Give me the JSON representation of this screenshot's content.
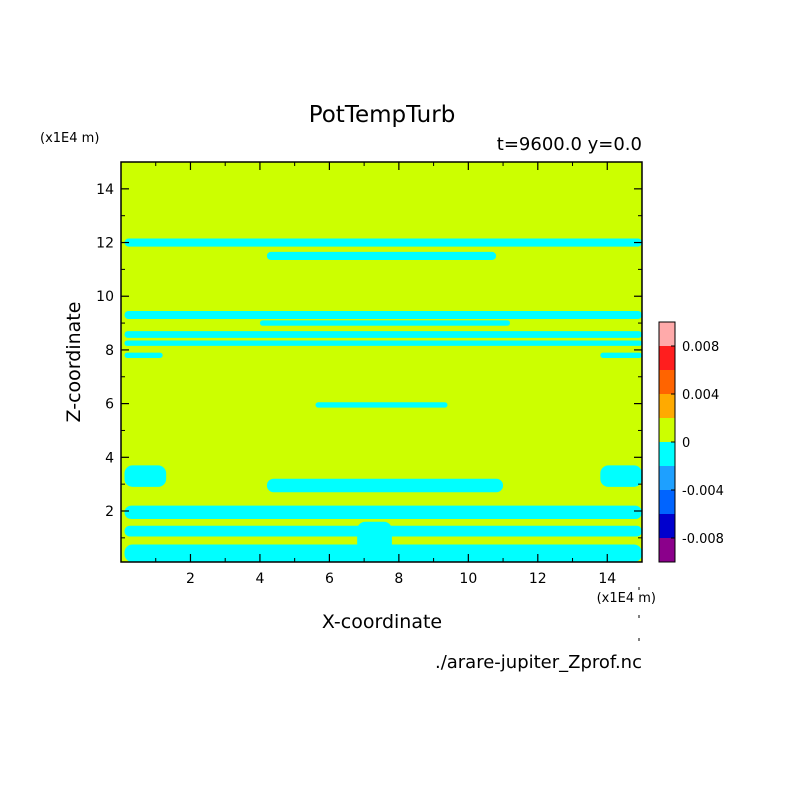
{
  "chart_data": {
    "type": "heatmap",
    "title": "PotTempTurb",
    "subtitle": "t=9600.0 y=0.0",
    "xlabel": "X-coordinate",
    "ylabel": "Z-coordinate",
    "x_unit": "(x1E4 m)",
    "y_unit": "(x1E4 m)",
    "source_file": "./arare-jupiter_Zprof.nc",
    "xlim": [
      0,
      15
    ],
    "ylim": [
      0.1,
      15
    ],
    "x_ticks": [
      2,
      4,
      6,
      8,
      10,
      12,
      14
    ],
    "y_ticks": [
      2,
      4,
      6,
      8,
      10,
      12,
      14
    ],
    "colorbar": {
      "levels": [
        -0.01,
        -0.008,
        -0.006,
        -0.004,
        -0.002,
        0,
        0.002,
        0.004,
        0.006,
        0.008,
        0.01
      ],
      "colors": [
        "#8b008b",
        "#0000cd",
        "#0064ff",
        "#1ea0ff",
        "#00ffff",
        "#ccff00",
        "#ffaa00",
        "#ff6400",
        "#ff1e1e",
        "#ffaaaa"
      ],
      "tick_values": [
        0.008,
        0.004,
        0,
        -0.004,
        -0.008
      ],
      "tick_labels": [
        "0.008",
        "0.004",
        "0",
        "-0.004",
        "-0.008"
      ]
    },
    "background_color": "#ccff00",
    "band_color": "#00ffff",
    "cyan_regions": [
      {
        "x": [
          0.1,
          15
        ],
        "z": [
          11.85,
          12.15
        ]
      },
      {
        "x": [
          4.2,
          10.8
        ],
        "z": [
          11.35,
          11.65
        ]
      },
      {
        "x": [
          0.1,
          15
        ],
        "z": [
          9.15,
          9.45
        ]
      },
      {
        "x": [
          4.0,
          11.2
        ],
        "z": [
          8.9,
          9.1
        ]
      },
      {
        "x": [
          0.1,
          15
        ],
        "z": [
          8.45,
          8.7
        ]
      },
      {
        "x": [
          0.1,
          15
        ],
        "z": [
          8.15,
          8.35
        ]
      },
      {
        "x": [
          0.1,
          1.2
        ],
        "z": [
          7.7,
          7.9
        ]
      },
      {
        "x": [
          13.8,
          15
        ],
        "z": [
          7.7,
          7.9
        ]
      },
      {
        "x": [
          5.6,
          9.4
        ],
        "z": [
          5.85,
          6.05
        ]
      },
      {
        "x": [
          0.1,
          1.3
        ],
        "z": [
          2.9,
          3.7
        ]
      },
      {
        "x": [
          13.8,
          15
        ],
        "z": [
          2.9,
          3.7
        ]
      },
      {
        "x": [
          4.2,
          11.0
        ],
        "z": [
          2.7,
          3.2
        ]
      },
      {
        "x": [
          0.1,
          15
        ],
        "z": [
          1.7,
          2.2
        ]
      },
      {
        "x": [
          0.1,
          15
        ],
        "z": [
          1.05,
          1.45
        ]
      },
      {
        "x": [
          6.8,
          7.8
        ],
        "z": [
          0.1,
          1.6
        ]
      },
      {
        "x": [
          0.1,
          15
        ],
        "z": [
          0.1,
          0.75
        ]
      }
    ]
  }
}
